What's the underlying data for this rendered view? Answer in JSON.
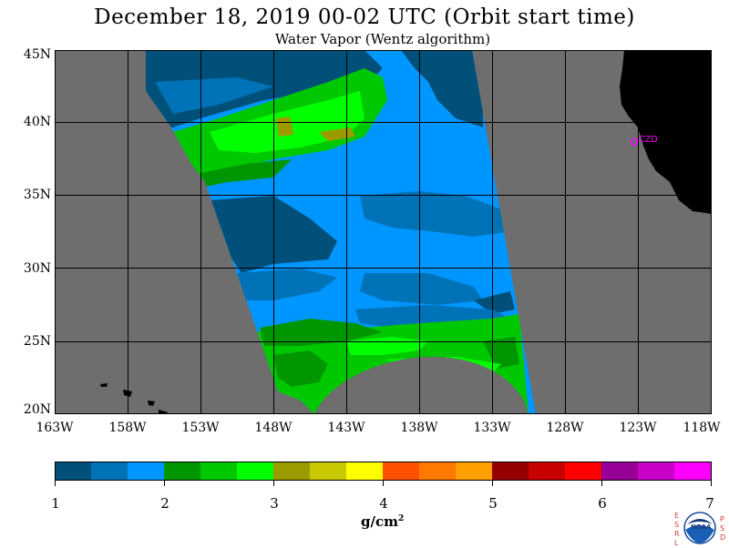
{
  "title": "December 18, 2019  00-02 UTC  (Orbit start time)",
  "subtitle": "Water Vapor (Wentz algorithm)",
  "map": {
    "lat_labels": [
      "45N",
      "40N",
      "35N",
      "30N",
      "25N",
      "20N"
    ],
    "lon_labels": [
      "163W",
      "158W",
      "153W",
      "148W",
      "143W",
      "138W",
      "133W",
      "128W",
      "123W",
      "118W"
    ],
    "station_label": "CZD",
    "colors": {
      "no_data": "#6e6e6e",
      "land": "#000000",
      "grid": "#000000",
      "station": "#ff00ff"
    }
  },
  "colorbar": {
    "tick_labels": [
      "1",
      "2",
      "3",
      "4",
      "5",
      "6",
      "7"
    ],
    "colors": [
      "#00507a",
      "#0072b8",
      "#0096ff",
      "#009600",
      "#00c800",
      "#00ff00",
      "#9b9b00",
      "#c8c800",
      "#ffff00",
      "#ff5000",
      "#ff7800",
      "#ffa000",
      "#960000",
      "#c80000",
      "#ff0000",
      "#960096",
      "#c800c8",
      "#ff00ff"
    ],
    "units": "g/cm",
    "units_exp": "2"
  },
  "logo": {
    "left_letters": [
      "E",
      "S",
      "R",
      "L"
    ],
    "right_letters": [
      "P",
      "S",
      "D"
    ],
    "text": "NOAA"
  }
}
